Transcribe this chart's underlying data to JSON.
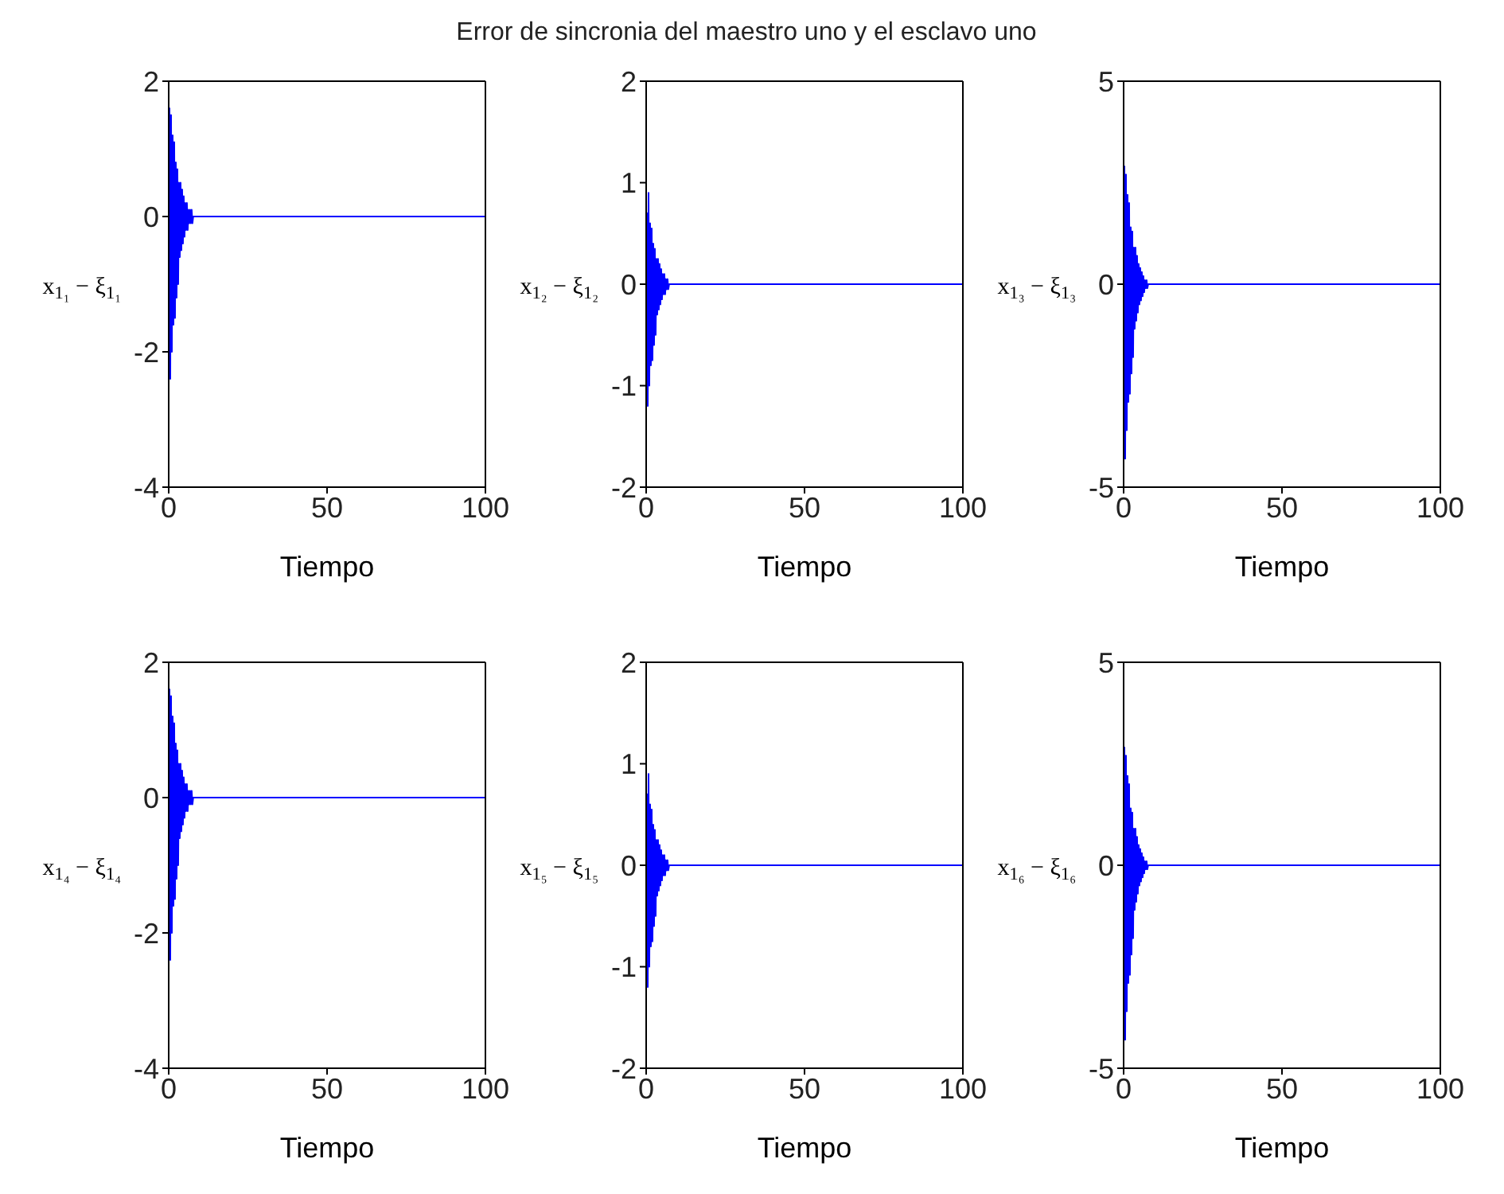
{
  "chart_data": [
    {
      "type": "line",
      "xlabel": "Tiempo",
      "ylabel": "x$_{1₁}$ − ξ$_{1₁}$",
      "xlim": [
        0,
        100
      ],
      "xticks": [
        0,
        50,
        100
      ],
      "ylim": [
        -4,
        2
      ],
      "yticks": [
        -4,
        -2,
        0,
        2
      ],
      "grid": false,
      "legend": false,
      "marker": "none",
      "line_style": "solid",
      "x": [
        0,
        0.25,
        0.5,
        0.75,
        1,
        1.25,
        1.5,
        1.75,
        2,
        2.25,
        2.5,
        2.75,
        3,
        3.25,
        3.5,
        3.75,
        4,
        4.25,
        4.5,
        4.75,
        5,
        5.25,
        5.5,
        5.75,
        6,
        6.25,
        6.5,
        6.75,
        7,
        7.25,
        7.5,
        7.75,
        8,
        100
      ],
      "series": [
        {
          "color": "#0000ff",
          "values": [
            0,
            1.6,
            -2.4,
            1.5,
            -2.0,
            1.2,
            -1.6,
            1.1,
            -1.5,
            0.8,
            -1.2,
            0.7,
            -1.0,
            0.5,
            -0.6,
            0.5,
            -0.5,
            0.4,
            -0.4,
            0.3,
            -0.3,
            0.2,
            -0.2,
            0.2,
            -0.2,
            0.1,
            -0.1,
            0.1,
            -0.1,
            0.1,
            -0.1,
            0,
            0,
            0
          ]
        }
      ]
    },
    {
      "type": "line",
      "title": "Error de sincronia del maestro uno y el esclavo uno",
      "xlabel": "Tiempo",
      "ylabel": "x$_{1₂}$ − ξ$_{1₂}$",
      "xlim": [
        0,
        100
      ],
      "xticks": [
        0,
        50,
        100
      ],
      "ylim": [
        -2,
        2
      ],
      "yticks": [
        -2,
        -1,
        0,
        1,
        2
      ],
      "grid": false,
      "legend": false,
      "marker": "none",
      "line_style": "solid",
      "x": [
        0,
        0.25,
        0.5,
        0.75,
        1,
        1.25,
        1.5,
        1.75,
        2,
        2.25,
        2.5,
        2.75,
        3,
        3.25,
        3.5,
        3.75,
        4,
        4.25,
        4.5,
        4.75,
        5,
        5.25,
        5.5,
        5.75,
        6,
        6.25,
        6.5,
        6.75,
        7,
        7.25,
        7.5,
        7.75,
        8,
        100
      ],
      "series": [
        {
          "color": "#0000ff",
          "values": [
            0,
            0.7,
            -1.2,
            0.9,
            -1.0,
            0.6,
            -0.8,
            0.55,
            -0.75,
            0.4,
            -0.6,
            0.35,
            -0.5,
            0.25,
            -0.3,
            0.25,
            -0.25,
            0.2,
            -0.2,
            0.15,
            -0.15,
            0.1,
            -0.1,
            0.1,
            -0.1,
            0.05,
            -0.05,
            0.05,
            -0.05,
            0,
            0,
            0,
            0,
            0
          ]
        }
      ]
    },
    {
      "type": "line",
      "xlabel": "Tiempo",
      "ylabel": "x$_{1₃}$ − ξ$_{1₃}$",
      "xlim": [
        0,
        100
      ],
      "xticks": [
        0,
        50,
        100
      ],
      "ylim": [
        -5,
        5
      ],
      "yticks": [
        -5,
        0,
        5
      ],
      "grid": false,
      "legend": false,
      "marker": "none",
      "line_style": "solid",
      "x": [
        0,
        0.25,
        0.5,
        0.75,
        1,
        1.25,
        1.5,
        1.75,
        2,
        2.25,
        2.5,
        2.75,
        3,
        3.25,
        3.5,
        3.75,
        4,
        4.25,
        4.5,
        4.75,
        5,
        5.25,
        5.5,
        5.75,
        6,
        6.25,
        6.5,
        6.75,
        7,
        7.25,
        7.5,
        7.75,
        8,
        100
      ],
      "series": [
        {
          "color": "#0000ff",
          "values": [
            0,
            2.9,
            -4.3,
            2.7,
            -3.6,
            2.2,
            -2.9,
            2.0,
            -2.7,
            1.4,
            -2.2,
            1.3,
            -1.8,
            0.9,
            -1.1,
            0.9,
            -0.9,
            0.7,
            -0.7,
            0.5,
            -0.5,
            0.4,
            -0.4,
            0.3,
            -0.3,
            0.2,
            -0.2,
            0.1,
            -0.1,
            0.1,
            -0.1,
            0,
            0,
            0
          ]
        }
      ]
    },
    {
      "type": "line",
      "xlabel": "Tiempo",
      "ylabel": "x$_{1₄}$ − ξ$_{1₄}$",
      "xlim": [
        0,
        100
      ],
      "xticks": [
        0,
        50,
        100
      ],
      "ylim": [
        -4,
        2
      ],
      "yticks": [
        -4,
        -2,
        0,
        2
      ],
      "grid": false,
      "legend": false,
      "marker": "none",
      "line_style": "solid",
      "x": [
        0,
        0.25,
        0.5,
        0.75,
        1,
        1.25,
        1.5,
        1.75,
        2,
        2.25,
        2.5,
        2.75,
        3,
        3.25,
        3.5,
        3.75,
        4,
        4.25,
        4.5,
        4.75,
        5,
        5.25,
        5.5,
        5.75,
        6,
        6.25,
        6.5,
        6.75,
        7,
        7.25,
        7.5,
        7.75,
        8,
        100
      ],
      "series": [
        {
          "color": "#0000ff",
          "values": [
            0,
            1.6,
            -2.4,
            1.5,
            -2.0,
            1.2,
            -1.6,
            1.1,
            -1.5,
            0.8,
            -1.2,
            0.7,
            -1.0,
            0.5,
            -0.6,
            0.5,
            -0.5,
            0.4,
            -0.4,
            0.3,
            -0.3,
            0.2,
            -0.2,
            0.2,
            -0.2,
            0.1,
            -0.1,
            0.1,
            -0.1,
            0.1,
            -0.1,
            0,
            0,
            0
          ]
        }
      ]
    },
    {
      "type": "line",
      "xlabel": "Tiempo",
      "ylabel": "x$_{1₅}$ − ξ$_{1₅}$",
      "xlim": [
        0,
        100
      ],
      "xticks": [
        0,
        50,
        100
      ],
      "ylim": [
        -2,
        2
      ],
      "yticks": [
        -2,
        -1,
        0,
        1,
        2
      ],
      "grid": false,
      "legend": false,
      "marker": "none",
      "line_style": "solid",
      "x": [
        0,
        0.25,
        0.5,
        0.75,
        1,
        1.25,
        1.5,
        1.75,
        2,
        2.25,
        2.5,
        2.75,
        3,
        3.25,
        3.5,
        3.75,
        4,
        4.25,
        4.5,
        4.75,
        5,
        5.25,
        5.5,
        5.75,
        6,
        6.25,
        6.5,
        6.75,
        7,
        7.25,
        7.5,
        7.75,
        8,
        100
      ],
      "series": [
        {
          "color": "#0000ff",
          "values": [
            0,
            0.7,
            -1.2,
            0.9,
            -1.0,
            0.6,
            -0.8,
            0.55,
            -0.75,
            0.4,
            -0.6,
            0.35,
            -0.5,
            0.25,
            -0.3,
            0.25,
            -0.25,
            0.2,
            -0.2,
            0.15,
            -0.15,
            0.1,
            -0.1,
            0.1,
            -0.1,
            0.05,
            -0.05,
            0.05,
            -0.05,
            0,
            0,
            0,
            0,
            0
          ]
        }
      ]
    },
    {
      "type": "line",
      "xlabel": "Tiempo",
      "ylabel": "x$_{1₆}$ − ξ$_{1₆}$",
      "xlim": [
        0,
        100
      ],
      "xticks": [
        0,
        50,
        100
      ],
      "ylim": [
        -5,
        5
      ],
      "yticks": [
        -5,
        0,
        5
      ],
      "grid": false,
      "legend": false,
      "marker": "none",
      "line_style": "solid",
      "x": [
        0,
        0.25,
        0.5,
        0.75,
        1,
        1.25,
        1.5,
        1.75,
        2,
        2.25,
        2.5,
        2.75,
        3,
        3.25,
        3.5,
        3.75,
        4,
        4.25,
        4.5,
        4.75,
        5,
        5.25,
        5.5,
        5.75,
        6,
        6.25,
        6.5,
        6.75,
        7,
        7.25,
        7.5,
        7.75,
        8,
        100
      ],
      "series": [
        {
          "color": "#0000ff",
          "values": [
            0,
            2.9,
            -4.3,
            2.7,
            -3.6,
            2.2,
            -2.9,
            2.0,
            -2.7,
            1.4,
            -2.2,
            1.3,
            -1.8,
            0.9,
            -1.1,
            0.9,
            -0.9,
            0.7,
            -0.7,
            0.5,
            -0.5,
            0.4,
            -0.4,
            0.3,
            -0.3,
            0.2,
            -0.2,
            0.1,
            -0.1,
            0.1,
            -0.1,
            0,
            0,
            0
          ]
        }
      ]
    }
  ]
}
